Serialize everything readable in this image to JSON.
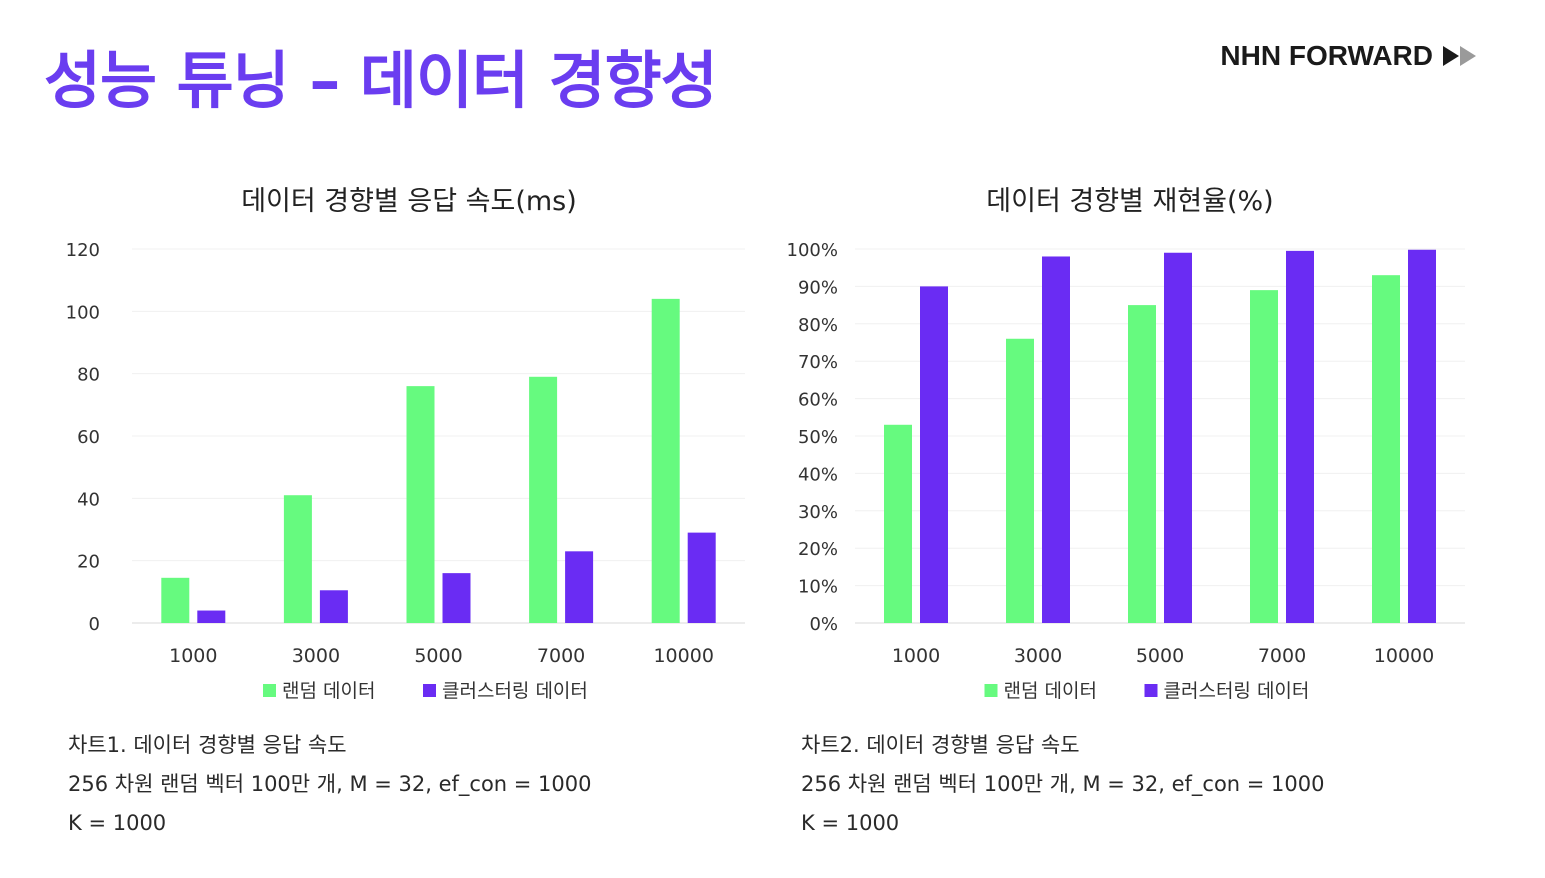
{
  "slide": {
    "title": "성능 튜닝 – 데이터 경향성",
    "brand": "NHN FORWARD"
  },
  "colors": {
    "title": "#6a3df0",
    "random": "#66fa7f",
    "clustered": "#6a2cf3"
  },
  "chart_data": [
    {
      "type": "bar",
      "title": "데이터 경향별 응답 속도(ms)",
      "categories": [
        "1000",
        "3000",
        "5000",
        "7000",
        "10000"
      ],
      "series": [
        {
          "name": "랜덤 데이터",
          "values": [
            14.5,
            41,
            76,
            79,
            104
          ]
        },
        {
          "name": "클러스터링 데이터",
          "values": [
            4,
            10.5,
            16,
            23,
            29
          ]
        }
      ],
      "ylim": [
        0,
        120
      ],
      "yticks": [
        0,
        20,
        40,
        60,
        80,
        100,
        120
      ],
      "ytick_labels": [
        "0",
        "20",
        "40",
        "60",
        "80",
        "100",
        "120"
      ],
      "grid": true,
      "legend": "bottom"
    },
    {
      "type": "bar",
      "title": "데이터 경향별 재현율(%)",
      "categories": [
        "1000",
        "3000",
        "5000",
        "7000",
        "10000"
      ],
      "series": [
        {
          "name": "랜덤 데이터",
          "values": [
            53,
            76,
            85,
            89,
            93
          ]
        },
        {
          "name": "클러스터링 데이터",
          "values": [
            90,
            98,
            99,
            99.5,
            99.8
          ]
        }
      ],
      "ylim": [
        0,
        100
      ],
      "yticks": [
        0,
        10,
        20,
        30,
        40,
        50,
        60,
        70,
        80,
        90,
        100
      ],
      "ytick_labels": [
        "0%",
        "10%",
        "20%",
        "30%",
        "40%",
        "50%",
        "60%",
        "70%",
        "80%",
        "90%",
        "100%"
      ],
      "grid": true,
      "legend": "bottom"
    }
  ],
  "captions": [
    {
      "lines": [
        "차트1. 데이터 경향별 응답 속도",
        "256 차원 랜덤 벡터 100만 개, M = 32, ef_con = 1000",
        "K = 1000"
      ]
    },
    {
      "lines": [
        "차트2. 데이터 경향별 응답 속도",
        "256 차원 랜덤 벡터 100만 개, M = 32, ef_con = 1000",
        "K = 1000"
      ]
    }
  ]
}
